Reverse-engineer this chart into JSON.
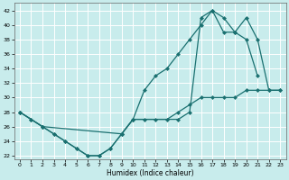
{
  "xlabel": "Humidex (Indice chaleur)",
  "bg_color": "#c8ecec",
  "line_color": "#1a7070",
  "grid_color": "#ffffff",
  "xlim": [
    -0.5,
    23.5
  ],
  "ylim": [
    21.5,
    43
  ],
  "yticks": [
    22,
    24,
    26,
    28,
    30,
    32,
    34,
    36,
    38,
    40,
    42
  ],
  "xticks": [
    0,
    1,
    2,
    3,
    4,
    5,
    6,
    7,
    8,
    9,
    10,
    11,
    12,
    13,
    14,
    15,
    16,
    17,
    18,
    19,
    20,
    21,
    22,
    23
  ],
  "line1_x": [
    0,
    1,
    2,
    3,
    4,
    5,
    6,
    7,
    8,
    9,
    10,
    11,
    12,
    13,
    14,
    15,
    16,
    17,
    18,
    19,
    20,
    21
  ],
  "line1_y": [
    28,
    27,
    26,
    25,
    24,
    23,
    22,
    22,
    23,
    25,
    27,
    31,
    33,
    34,
    36,
    38,
    40,
    42,
    39,
    39,
    38,
    33
  ],
  "line2_x": [
    0,
    1,
    2,
    3,
    4,
    5,
    6,
    7,
    8,
    9,
    10,
    11,
    12,
    13,
    14,
    15,
    16,
    17,
    18,
    19,
    20,
    21,
    22,
    23
  ],
  "line2_y": [
    28,
    27,
    26,
    25,
    24,
    23,
    22,
    22,
    23,
    25,
    27,
    27,
    27,
    27,
    28,
    29,
    30,
    30,
    30,
    30,
    31,
    31,
    31,
    31
  ],
  "line3_x": [
    0,
    2,
    9,
    10,
    14,
    15,
    16,
    17,
    18,
    19,
    20,
    21,
    22,
    23
  ],
  "line3_y": [
    28,
    26,
    25,
    27,
    27,
    28,
    41,
    42,
    41,
    39,
    41,
    38,
    31,
    31
  ]
}
